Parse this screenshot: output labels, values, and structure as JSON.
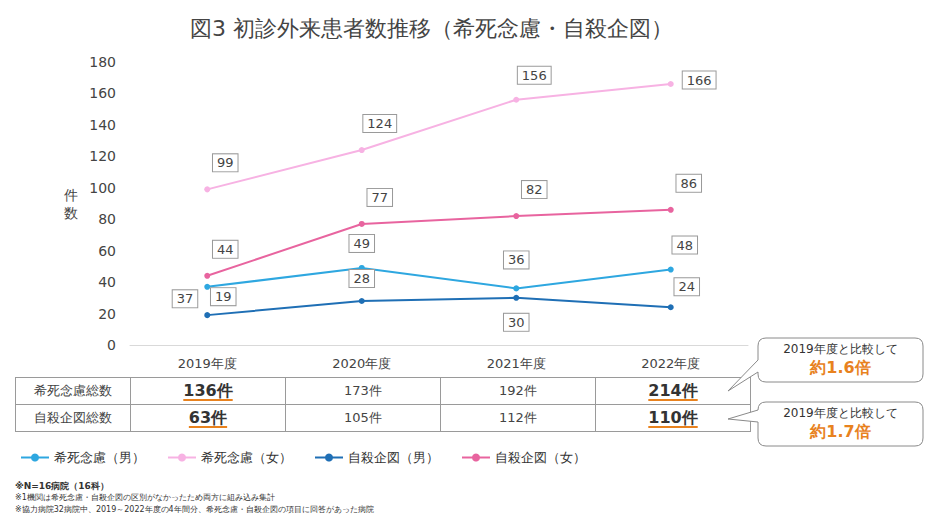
{
  "chart_data": {
    "type": "line",
    "title": "図3 初診外来患者数推移（希死念慮・自殺企図）",
    "ylabel": "件数",
    "categories": [
      "2019年度",
      "2020年度",
      "2021年度",
      "2022年度"
    ],
    "series": [
      {
        "name": "希死念慮（男）",
        "color": "#2ea7e0",
        "values": [
          37,
          49,
          36,
          48
        ]
      },
      {
        "name": "希死念慮（女）",
        "color": "#f7b2e3",
        "values": [
          99,
          124,
          156,
          166
        ]
      },
      {
        "name": "自殺企図（男）",
        "color": "#1f6fb5",
        "values": [
          19,
          28,
          30,
          24
        ]
      },
      {
        "name": "自殺企図（女）",
        "color": "#e8649f",
        "values": [
          44,
          77,
          82,
          86
        ]
      }
    ],
    "ylim": [
      0,
      180
    ],
    "yticks": [
      0,
      20,
      40,
      60,
      80,
      100,
      120,
      140,
      160,
      180
    ],
    "grid": false,
    "data_labels": true,
    "legend": "bottom",
    "marker": "circle"
  },
  "table": {
    "rows": [
      [
        "希死念慮総数",
        "136件",
        "173件",
        "192件",
        "214件"
      ],
      [
        "自殺企図総数",
        "63件",
        "105件",
        "112件",
        "110件"
      ]
    ]
  },
  "callouts": [
    {
      "text": "2019年度と比較して",
      "emphasis": "約1.6倍"
    },
    {
      "text": "2019年度と比較して",
      "emphasis": "約1.7倍"
    }
  ],
  "notes": [
    "※N=16病院（16科）",
    "※1機関は希死念慮・自殺企図の区別がなかったため両方に組み込み集計",
    "※協力病院32病院中、2019～2022年度の4年間分、希死念慮・自殺企図の項目に回答があった病院"
  ]
}
